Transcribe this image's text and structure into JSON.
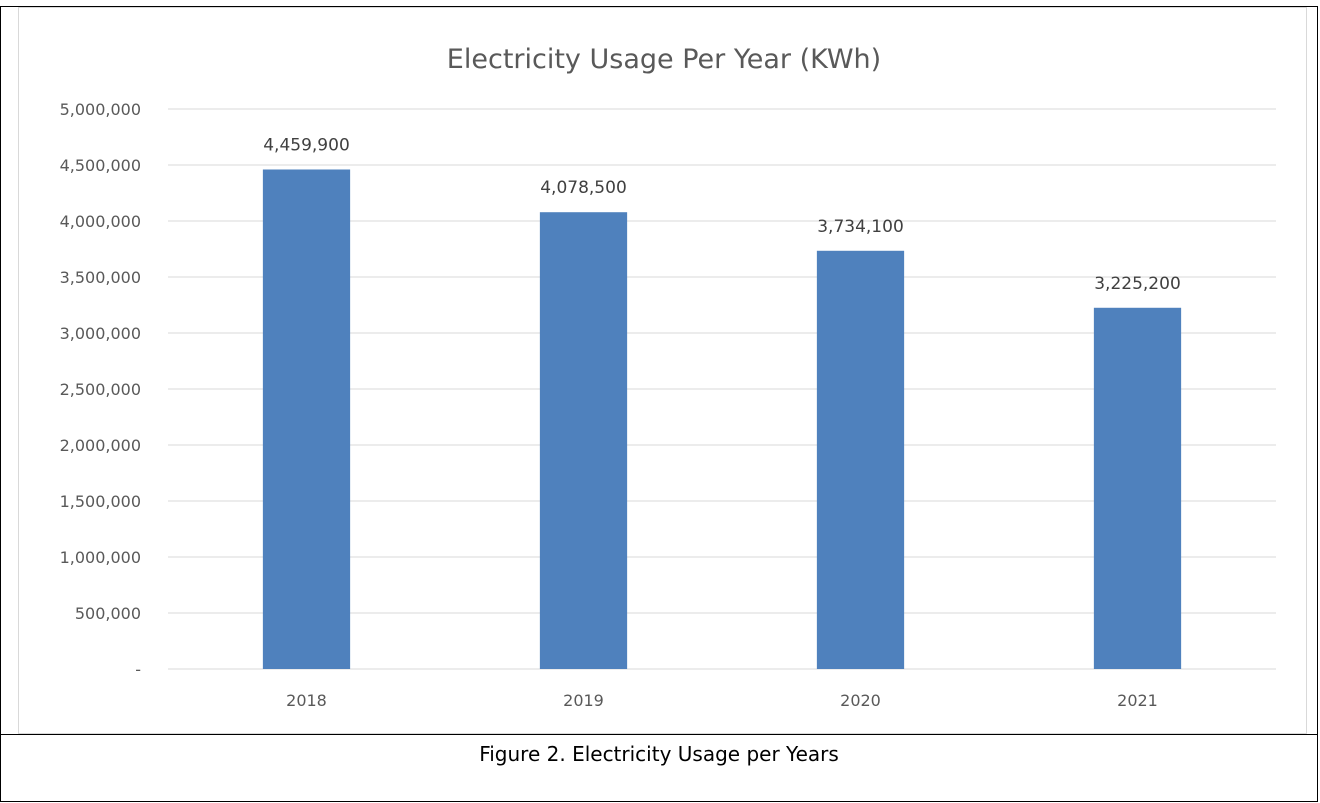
{
  "caption": "Figure 2. Electricity Usage per Years",
  "colors": {
    "bar": "#4f81bd",
    "gridline": "#d9d9d9",
    "axis_text": "#595959",
    "data_label": "#404040"
  },
  "chart_data": {
    "type": "bar",
    "title": "Electricity Usage Per Year (KWh)",
    "xlabel": "",
    "ylabel": "",
    "categories": [
      "2018",
      "2019",
      "2020",
      "2021"
    ],
    "values": [
      4459900,
      4078500,
      3734100,
      3225200
    ],
    "data_labels": [
      "4,459,900",
      "4,078,500",
      "3,734,100",
      "3,225,200"
    ],
    "ylim": [
      0,
      5000000
    ],
    "yticks": [
      0,
      500000,
      1000000,
      1500000,
      2000000,
      2500000,
      3000000,
      3500000,
      4000000,
      4500000,
      5000000
    ],
    "ytick_labels": [
      "-",
      "500,000",
      "1,000,000",
      "1,500,000",
      "2,000,000",
      "2,500,000",
      "3,000,000",
      "3,500,000",
      "4,000,000",
      "4,500,000",
      "5,000,000"
    ],
    "grid": true,
    "legend": "none"
  }
}
